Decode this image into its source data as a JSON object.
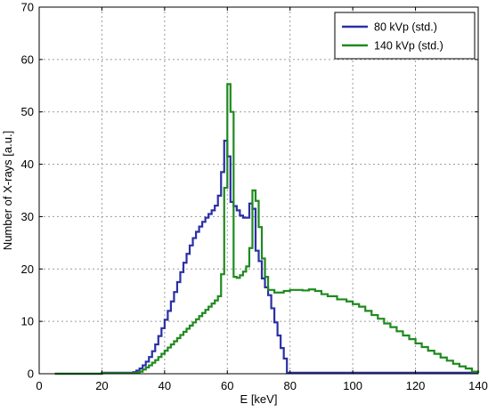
{
  "chart_data": {
    "type": "line",
    "xlabel": "E [keV]",
    "ylabel": "Number of X-rays [a.u.]",
    "xlim": [
      0,
      140
    ],
    "ylim": [
      0,
      70
    ],
    "xticks": [
      "0",
      "20",
      "40",
      "60",
      "80",
      "100",
      "120",
      "140"
    ],
    "yticks": [
      "0",
      "10",
      "20",
      "30",
      "40",
      "50",
      "60",
      "70"
    ],
    "grid": true,
    "legend_position": "top-right",
    "series": [
      {
        "name": "80 kVp (std.)",
        "color": "#2b2fa6",
        "step": true,
        "x": [
          5,
          20,
          30,
          31,
          32,
          33,
          34,
          35,
          36,
          37,
          38,
          39,
          40,
          41,
          42,
          43,
          44,
          45,
          46,
          47,
          48,
          49,
          50,
          51,
          52,
          53,
          54,
          55,
          56,
          57,
          58,
          59,
          60,
          61,
          62,
          63,
          64,
          65,
          66,
          67,
          68,
          69,
          70,
          71,
          72,
          73,
          74,
          75,
          76,
          77,
          78,
          79,
          80,
          140
        ],
        "y": [
          0,
          0.2,
          0.3,
          0.6,
          1.0,
          1.6,
          2.3,
          3.2,
          4.3,
          5.6,
          7.2,
          8.7,
          10.3,
          12.0,
          13.8,
          15.6,
          17.5,
          19.4,
          21.2,
          22.9,
          24.5,
          25.9,
          27.1,
          28.1,
          29.0,
          29.8,
          30.5,
          31.2,
          32.1,
          34.0,
          38.5,
          44.5,
          41.5,
          32.8,
          32.0,
          31.2,
          30.2,
          29.8,
          29.8,
          32.5,
          31.5,
          23.5,
          21.5,
          18.2,
          16.5,
          15.0,
          12.5,
          9.8,
          7.3,
          4.9,
          2.9,
          0.2,
          0.2,
          0.2
        ]
      },
      {
        "name": "140 kVp (std.)",
        "color": "#1f8a1f",
        "step": true,
        "x": [
          5,
          20,
          31,
          32,
          33,
          34,
          35,
          36,
          37,
          38,
          39,
          40,
          41,
          42,
          43,
          44,
          45,
          46,
          47,
          48,
          49,
          50,
          51,
          52,
          53,
          54,
          55,
          56,
          57,
          58,
          59,
          60,
          61,
          62,
          63,
          64,
          65,
          66,
          67,
          68,
          69,
          70,
          71,
          72,
          73,
          75,
          78,
          80,
          82,
          84,
          86,
          88,
          90,
          92,
          95,
          98,
          100,
          102,
          104,
          106,
          108,
          110,
          112,
          114,
          116,
          118,
          120,
          122,
          124,
          126,
          128,
          130,
          132,
          134,
          136,
          138,
          140
        ],
        "y": [
          0,
          0.1,
          0.2,
          0.4,
          0.8,
          1.2,
          1.6,
          2.1,
          2.6,
          3.2,
          3.8,
          4.4,
          5.0,
          5.6,
          6.2,
          6.8,
          7.4,
          8.0,
          8.6,
          9.2,
          9.8,
          10.4,
          11.0,
          11.6,
          12.2,
          12.8,
          13.4,
          14.0,
          14.8,
          19.0,
          35.5,
          55.3,
          50.0,
          18.5,
          18.3,
          18.8,
          19.5,
          20.5,
          24.0,
          35.0,
          33.0,
          28.0,
          22.0,
          18.5,
          16.0,
          15.5,
          15.8,
          16.0,
          16.0,
          15.9,
          16.1,
          15.8,
          15.2,
          14.8,
          14.2,
          13.8,
          13.3,
          12.8,
          12.0,
          11.2,
          10.5,
          9.6,
          8.9,
          8.1,
          7.3,
          6.6,
          5.8,
          5.1,
          4.4,
          3.8,
          3.1,
          2.5,
          1.9,
          1.4,
          1.0,
          0.4,
          0.2
        ]
      }
    ]
  }
}
